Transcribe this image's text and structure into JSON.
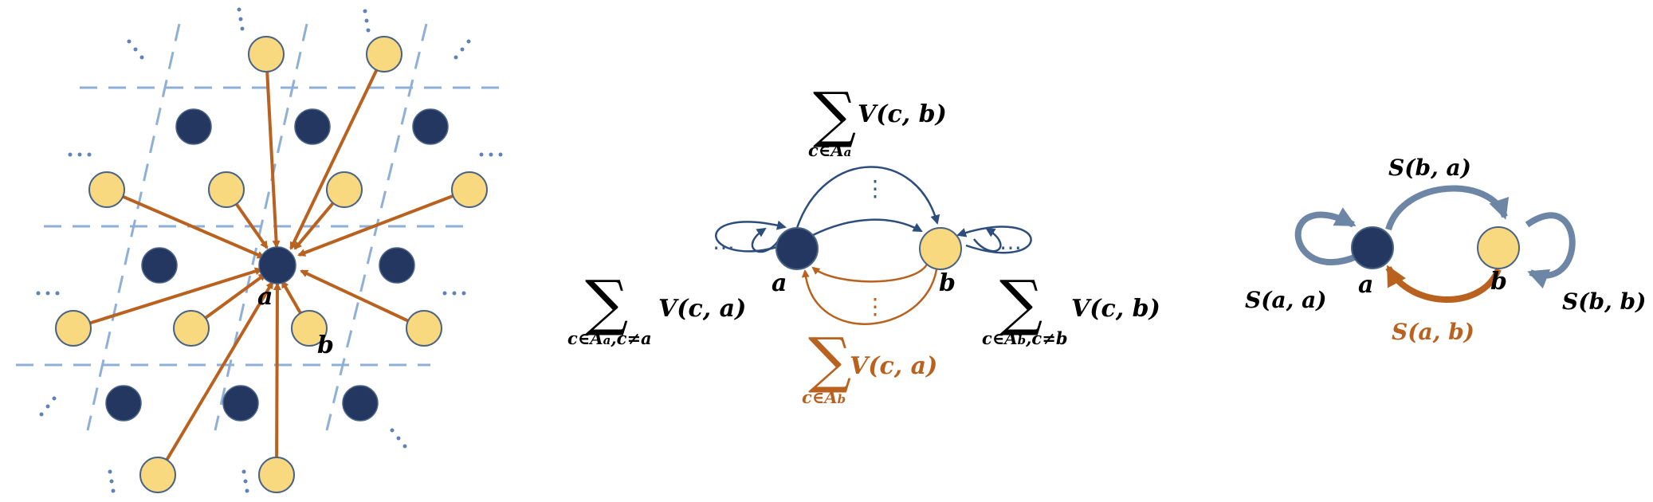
{
  "panel_left": {
    "node_a": "a",
    "node_b": "b",
    "dots": "⋯"
  },
  "panel_mid": {
    "node_a": "a",
    "node_b": "b",
    "dots": "⋯",
    "dots_v": "⋮",
    "top_sum": {
      "sigma": "∑",
      "sub": "c∈A",
      "sub2": "a",
      "term": "V(c, b)"
    },
    "left_sum": {
      "sigma": "∑",
      "sub": "c∈A",
      "sub2": "a",
      "sub3": ",c≠a",
      "term": "V(c, a)"
    },
    "right_sum": {
      "sigma": "∑",
      "sub": "c∈A",
      "sub2": "b",
      "sub3": ",c≠b",
      "term": "V(c, b)"
    },
    "bottom_sum": {
      "sigma": "∑",
      "sub": "c∈A",
      "sub2": "b",
      "term": "V(c, a)"
    }
  },
  "panel_right": {
    "node_a": "a",
    "node_b": "b",
    "s_ba": "S(b, a)",
    "s_aa": "S(a, a)",
    "s_bb": "S(b, b)",
    "s_ab": "S(a, b)"
  },
  "colors": {
    "dark_node": "#233761",
    "light_node": "#f8d980",
    "arrow_orange": "#b9621f",
    "arrow_blue": "#2d4d7c",
    "grid_blue": "#8fb0d6",
    "thick_blue": "#6d86a6"
  }
}
